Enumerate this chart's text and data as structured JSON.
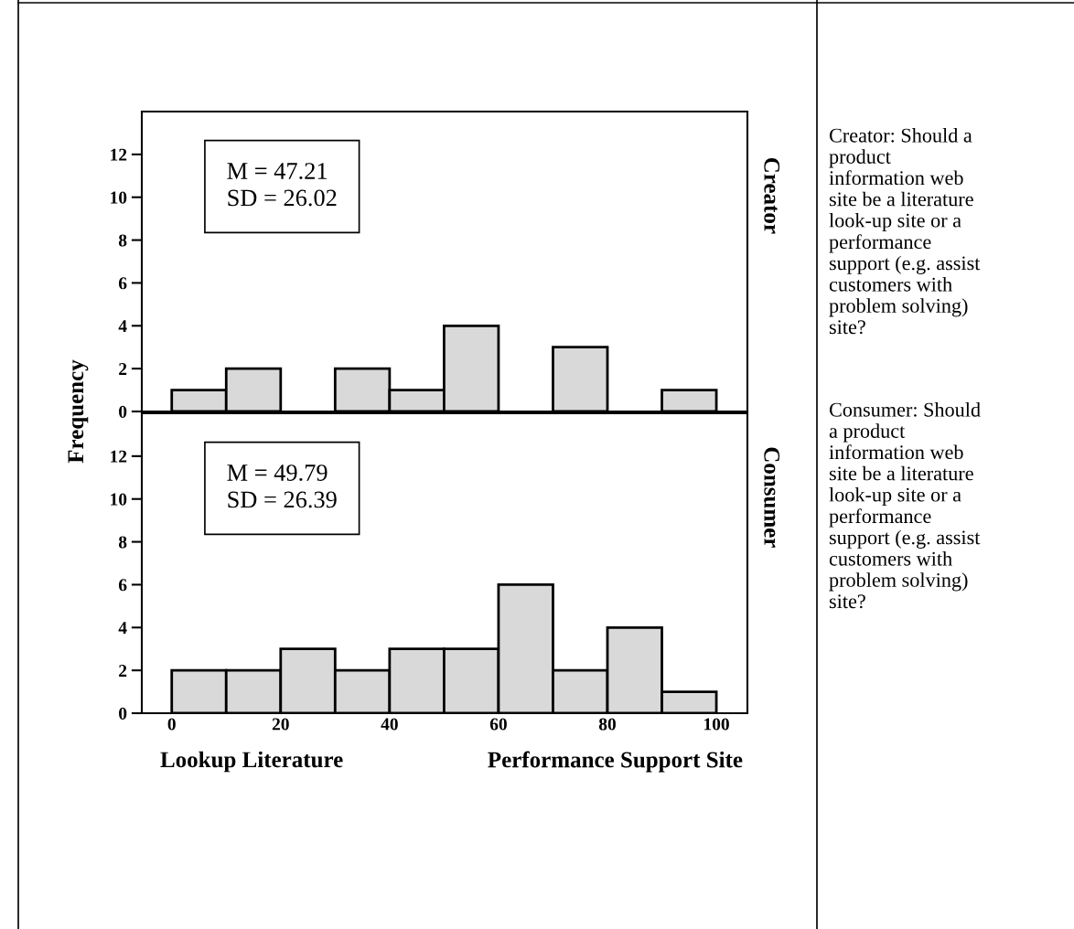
{
  "chart_data": [
    {
      "type": "histogram",
      "ylabel": "Frequency",
      "bins": [
        0,
        10,
        20,
        30,
        40,
        50,
        60,
        70,
        80,
        90,
        100
      ],
      "values": [
        1,
        2,
        0,
        2,
        1,
        4,
        0,
        3,
        0,
        1
      ],
      "color": "#d9d9d9",
      "xlim": [
        -5.5,
        105.7
      ],
      "ylim": [
        0,
        14
      ],
      "yticks": [
        0,
        2,
        4,
        6,
        8,
        10,
        12
      ],
      "tick_labels": "y",
      "grid": false,
      "annotations": [
        "Creator",
        "M = 47.21\nSD = 26.02",
        "Creator: Should a\nproduct\ninformation web\nsite be a literature\nlook-up site or a\nperformance\nsupport (e.g. assist\ncustomers with\nproblem solving)\nsite?"
      ]
    },
    {
      "type": "histogram",
      "xlabel": "Lookup Literature",
      "bins": [
        0,
        10,
        20,
        30,
        40,
        50,
        60,
        70,
        80,
        90,
        100
      ],
      "values": [
        2,
        2,
        3,
        2,
        3,
        3,
        6,
        2,
        4,
        1
      ],
      "color": "#d9d9d9",
      "xlim": [
        -5.5,
        105.7
      ],
      "xticks": [
        0,
        20,
        40,
        60,
        80,
        100
      ],
      "ylim": [
        0,
        14
      ],
      "yticks": [
        0,
        2,
        4,
        6,
        8,
        10,
        12
      ],
      "grid": false,
      "annotations": [
        "Consumer",
        "M = 49.79\nSD = 26.39",
        "Consumer: Should\na product\ninformation web\nsite be a literature\nlook-up site or a\nperformance\nsupport (e.g. assist\ncustomers with\nproblem solving)\nsite?",
        "Performance Support Site"
      ]
    }
  ]
}
